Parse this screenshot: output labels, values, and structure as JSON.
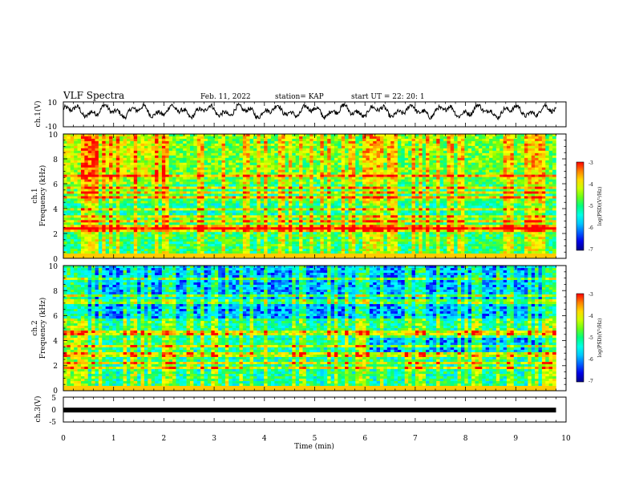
{
  "header": {
    "title": "VLF Spectra",
    "date": "Feb. 11, 2022",
    "station": "station= KAP",
    "start_ut": "start  UT  =   22: 20: 1"
  },
  "chart_data": [
    {
      "type": "line",
      "ylabel": "ch.1(V)",
      "ylim": [
        -10,
        10
      ],
      "yticklabels": [
        "10",
        "-10"
      ],
      "x_range_min": [
        0,
        9.8
      ],
      "description_y_mean": 2.5
    },
    {
      "type": "heatmap",
      "ylabel": "ch.1\nFrequency (kHz)",
      "ylim": [
        0,
        10
      ],
      "yticklabels": [
        "0",
        "2",
        "4",
        "6",
        "8",
        "10"
      ],
      "x_range_min": [
        0,
        9.8
      ],
      "bands_khz": [
        0.3,
        2.3,
        2.5,
        3.0,
        3.3,
        4.0,
        4.9,
        5.3,
        5.7,
        6.6
      ],
      "colorbar": {
        "label": "log(PSD)(V²/Hz)",
        "range": [
          -7,
          -3
        ],
        "ticklabels": [
          "-3",
          "-4",
          "-5",
          "-6",
          "-7"
        ]
      }
    },
    {
      "type": "heatmap",
      "ylabel": "ch.2\nFrequency (kHz)",
      "ylim": [
        0,
        10
      ],
      "yticklabels": [
        "0",
        "2",
        "4",
        "6",
        "8",
        "10"
      ],
      "x_range_min": [
        0,
        9.8
      ],
      "bands_khz": [
        0.3,
        1.9,
        2.2,
        2.9,
        3.6,
        4.6,
        7.1,
        7.6,
        8.9
      ],
      "colorbar": {
        "label": "log(PSD)(V²/Hz)",
        "range": [
          -7,
          -3
        ],
        "ticklabels": [
          "-3",
          "-4",
          "-5",
          "-6",
          "-7"
        ]
      }
    },
    {
      "type": "line",
      "ylabel": "ch.3(V)",
      "ylim": [
        -5,
        5
      ],
      "yticklabels": [
        "5",
        "0",
        "-5"
      ],
      "x_range_min": [
        0,
        9.8
      ],
      "value": -0.2
    }
  ],
  "xaxis": {
    "label": "Time (min)",
    "range": [
      0,
      10
    ],
    "ticklabels": [
      "0",
      "1",
      "2",
      "3",
      "4",
      "5",
      "6",
      "7",
      "8",
      "9",
      "10"
    ]
  },
  "colors": {
    "signal": "#000000",
    "colormap": [
      "#00008b",
      "#0000ff",
      "#00a0ff",
      "#00ffff",
      "#00ff80",
      "#80ff00",
      "#ffff00",
      "#ffa000",
      "#ff0000",
      "#ffffff"
    ]
  }
}
